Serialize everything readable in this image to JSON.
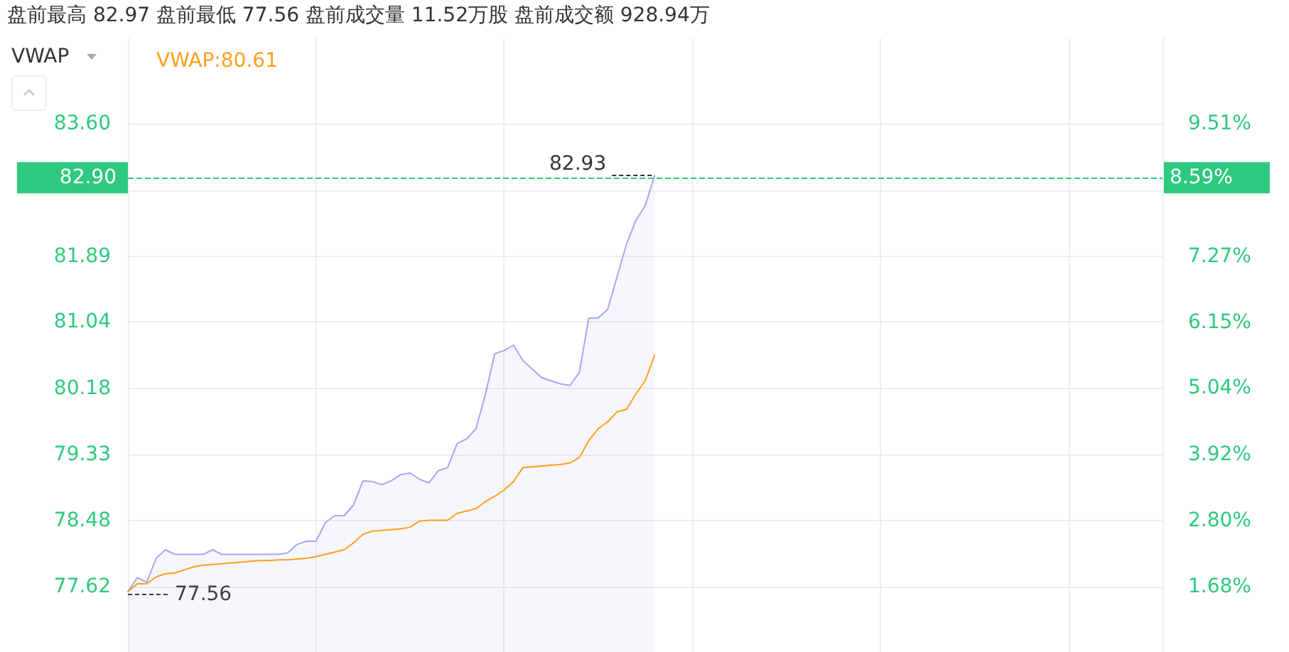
{
  "chart_data": {
    "type": "line",
    "title": "盘前最高 82.97 盘前最低 77.56 盘前成交量 11.52万股 盘前成交额 928.94万",
    "subtitle": "VWAP",
    "categories": [
      null,
      null,
      null,
      null,
      null,
      null,
      null,
      null,
      null,
      null,
      null,
      null,
      null,
      null,
      null,
      null,
      null,
      null,
      null,
      null,
      null,
      null,
      null,
      null,
      null,
      null,
      null,
      null,
      null,
      null,
      null,
      null,
      null,
      null,
      null,
      null,
      null,
      null,
      null,
      null,
      null,
      null,
      null,
      null,
      null,
      null,
      null,
      null,
      null,
      null,
      null,
      null,
      null,
      null,
      null,
      null,
      null
    ],
    "series": [
      {
        "type": "area",
        "color": "#a3a8f0",
        "values": [
          77.56,
          77.74,
          77.68,
          77.99,
          78.1,
          78.04,
          78.04,
          78.04,
          78.04,
          78.1,
          78.04,
          78.04,
          78.04,
          78.04,
          78.04,
          78.04,
          78.04,
          78.06,
          78.17,
          78.21,
          78.21,
          78.45,
          78.54,
          78.54,
          78.68,
          78.99,
          78.98,
          78.94,
          78.99,
          79.07,
          79.09,
          79.01,
          78.96,
          79.12,
          79.16,
          79.47,
          79.53,
          79.66,
          80.1,
          80.63,
          80.67,
          80.74,
          80.54,
          80.43,
          80.32,
          80.28,
          80.24,
          80.22,
          80.39,
          81.09,
          81.09,
          81.2,
          81.62,
          82.04,
          82.35,
          82.54,
          82.93
        ]
      },
      {
        "name": "VWAP:80.61",
        "color": "#ff9f1c",
        "values": [
          77.56,
          77.66,
          77.66,
          77.75,
          77.79,
          77.8,
          77.84,
          77.88,
          77.9,
          77.91,
          77.92,
          77.93,
          77.94,
          77.95,
          77.96,
          77.96,
          77.97,
          77.97,
          77.98,
          77.99,
          78.01,
          78.04,
          78.07,
          78.1,
          78.19,
          78.3,
          78.34,
          78.35,
          78.36,
          78.37,
          78.39,
          78.47,
          78.48,
          78.48,
          78.48,
          78.57,
          78.6,
          78.63,
          78.72,
          78.79,
          78.87,
          78.98,
          79.16,
          79.17,
          79.18,
          79.19,
          79.2,
          79.22,
          79.29,
          79.51,
          79.66,
          79.75,
          79.88,
          79.91,
          80.11,
          80.28,
          80.61
        ]
      }
    ],
    "ylim": [
      76.78,
      84.7
    ],
    "yticks": [
      77.62,
      78.48,
      79.33,
      80.18,
      81.04,
      81.89,
      {
        "value": 82.74,
        "label": null
      },
      {
        "value": 83.6,
        "label": "83.60"
      }
    ],
    "y2lim": [
      0.58,
      10.95
    ],
    "y2ticks": [
      {
        "value": 1.68,
        "label": "1.68%"
      },
      {
        "value": 2.8,
        "label": "2.80%"
      },
      {
        "value": 3.92,
        "label": "3.92%"
      },
      {
        "value": 5.04,
        "label": "5.04%"
      },
      {
        "value": 6.15,
        "label": "6.15%"
      },
      {
        "value": 7.27,
        "label": "7.27%"
      },
      {
        "value": 8.39,
        "label": null
      },
      {
        "value": 9.51,
        "label": "9.51%"
      }
    ],
    "ref_lines": [
      {
        "axis": "y",
        "value": 82.9,
        "label": "82.90",
        "color": "#2dc97e",
        "line_style": "dashed"
      }
    ],
    "annotations": [
      {
        "text": "82.93",
        "y": 82.93
      },
      "77.56",
      "8.59%"
    ],
    "grid": true,
    "legend": "top left",
    "tick_labels": "y",
    "marker": "none",
    "line_style": "solid"
  }
}
